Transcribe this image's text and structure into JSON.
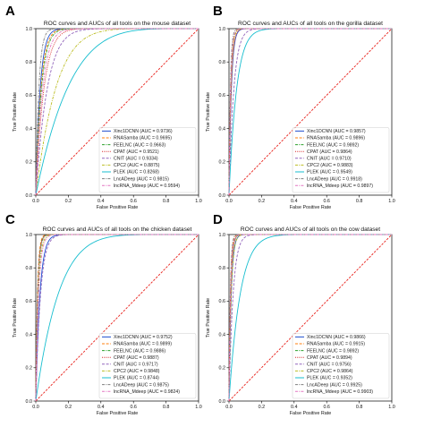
{
  "chart_data": [
    {
      "panel": "A",
      "type": "line",
      "title": "ROC curves and AUCs of all tools on the mouse dataset",
      "xlabel": "False Positive Rate",
      "ylabel": "True Positive Rate",
      "xlim": [
        0,
        1
      ],
      "ylim": [
        0,
        1
      ],
      "xticks": [
        "0.0",
        "0.2",
        "0.4",
        "0.6",
        "0.8",
        "1.0"
      ],
      "yticks": [
        "0.0",
        "0.2",
        "0.4",
        "0.6",
        "0.8",
        "1.0"
      ],
      "legend_position": "lower-right",
      "series": [
        {
          "name": "Xinc1DCNN (AUC = 0.9736)",
          "color": "#1f4fd0",
          "dash": "solid",
          "auc": 0.9736
        },
        {
          "name": "RNASamba (AUC = 0.9695)",
          "color": "#ff7f0e",
          "dash": "dashed",
          "auc": 0.9695
        },
        {
          "name": "FEELNC (AUC = 0.9663)",
          "color": "#2ca02c",
          "dash": "dashdot",
          "auc": 0.9663
        },
        {
          "name": "CPAT (AUC = 0.9521)",
          "color": "#d62728",
          "dash": "dotted",
          "auc": 0.9521
        },
        {
          "name": "CNIT (AUC = 0.9334)",
          "color": "#9467bd",
          "dash": "dashed",
          "auc": 0.9334
        },
        {
          "name": "CPC2 (AUC = 0.8875)",
          "color": "#bcbd22",
          "dash": "dashdot",
          "auc": 0.8875
        },
        {
          "name": "PLEK (AUC = 0.8268)",
          "color": "#17becf",
          "dash": "solid",
          "auc": 0.8268
        },
        {
          "name": "LncADeep (AUC = 0.9815)",
          "color": "#7f7f7f",
          "dash": "dashdot",
          "auc": 0.9815
        },
        {
          "name": "lncRNA_Mdeep (AUC = 0.9594)",
          "color": "#e377c2",
          "dash": "dashdot",
          "auc": 0.9594
        }
      ]
    },
    {
      "panel": "B",
      "type": "line",
      "title": "ROC curves and AUCs of all tools on the gorilla dataset",
      "xlabel": "False Positive Rate",
      "ylabel": "True Positive Rate",
      "xlim": [
        0,
        1
      ],
      "ylim": [
        0,
        1
      ],
      "xticks": [
        "0.0",
        "0.2",
        "0.4",
        "0.6",
        "0.8",
        "1.0"
      ],
      "yticks": [
        "0.0",
        "0.2",
        "0.4",
        "0.6",
        "0.8",
        "1.0"
      ],
      "legend_position": "lower-right",
      "series": [
        {
          "name": "Xinc1DCNN (AUC = 0.9857)",
          "color": "#1f4fd0",
          "dash": "solid",
          "auc": 0.9857
        },
        {
          "name": "RNASamba (AUC = 0.9896)",
          "color": "#ff7f0e",
          "dash": "dashed",
          "auc": 0.9896
        },
        {
          "name": "FEELNC (AUC = 0.9892)",
          "color": "#2ca02c",
          "dash": "dashdot",
          "auc": 0.9892
        },
        {
          "name": "CPAT (AUC = 0.9864)",
          "color": "#d62728",
          "dash": "dotted",
          "auc": 0.9864
        },
        {
          "name": "CNIT (AUC = 0.9710)",
          "color": "#9467bd",
          "dash": "dashed",
          "auc": 0.971
        },
        {
          "name": "CPC2 (AUC = 0.9883)",
          "color": "#bcbd22",
          "dash": "dashdot",
          "auc": 0.9883
        },
        {
          "name": "PLEK (AUC = 0.9549)",
          "color": "#17becf",
          "dash": "solid",
          "auc": 0.9549
        },
        {
          "name": "LncADeep (AUC = 0.9918)",
          "color": "#7f7f7f",
          "dash": "dashdot",
          "auc": 0.9918
        },
        {
          "name": "lncRNA_Mdeep (AUC = 0.9897)",
          "color": "#e377c2",
          "dash": "dashdot",
          "auc": 0.9897
        }
      ]
    },
    {
      "panel": "C",
      "type": "line",
      "title": "ROC curves and AUCs of all tools on the chicken dataset",
      "xlabel": "False Positive Rate",
      "ylabel": "True Positive Rate",
      "xlim": [
        0,
        1
      ],
      "ylim": [
        0,
        1
      ],
      "xticks": [
        "0.0",
        "0.2",
        "0.4",
        "0.6",
        "0.8",
        "1.0"
      ],
      "yticks": [
        "0.0",
        "0.2",
        "0.4",
        "0.6",
        "0.8",
        "1.0"
      ],
      "legend_position": "lower-right",
      "series": [
        {
          "name": "Xinc1DCNN (AUC = 0.9752)",
          "color": "#1f4fd0",
          "dash": "solid",
          "auc": 0.9752
        },
        {
          "name": "RNASamba (AUC = 0.9899)",
          "color": "#ff7f0e",
          "dash": "dashed",
          "auc": 0.9899
        },
        {
          "name": "FEELNC (AUC = 0.9886)",
          "color": "#2ca02c",
          "dash": "dashdot",
          "auc": 0.9886
        },
        {
          "name": "CPAT (AUC = 0.9887)",
          "color": "#d62728",
          "dash": "dotted",
          "auc": 0.9887
        },
        {
          "name": "CNIT (AUC = 0.9717)",
          "color": "#9467bd",
          "dash": "dashed",
          "auc": 0.9717
        },
        {
          "name": "CPC2 (AUC = 0.9848)",
          "color": "#bcbd22",
          "dash": "dashdot",
          "auc": 0.9848
        },
        {
          "name": "PLEK (AUC = 0.8744)",
          "color": "#17becf",
          "dash": "solid",
          "auc": 0.8744
        },
        {
          "name": "LncADeep (AUC = 0.9875)",
          "color": "#7f7f7f",
          "dash": "dashdot",
          "auc": 0.9875
        },
        {
          "name": "lncRNA_Mdeep (AUC = 0.9824)",
          "color": "#e377c2",
          "dash": "dashdot",
          "auc": 0.9824
        }
      ]
    },
    {
      "panel": "D",
      "type": "line",
      "title": "ROC curves and AUCs of all tools on the cow dataset",
      "xlabel": "False Positive Rate",
      "ylabel": "True Positive Rate",
      "xlim": [
        0,
        1
      ],
      "ylim": [
        0,
        1
      ],
      "xticks": [
        "0.0",
        "0.2",
        "0.4",
        "0.6",
        "0.8",
        "1.0"
      ],
      "yticks": [
        "0.0",
        "0.2",
        "0.4",
        "0.6",
        "0.8",
        "1.0"
      ],
      "legend_position": "lower-right",
      "series": [
        {
          "name": "Xinc1DCNN (AUC = 0.9866)",
          "color": "#1f4fd0",
          "dash": "solid",
          "auc": 0.9866
        },
        {
          "name": "RNASamba (AUC = 0.9915)",
          "color": "#ff7f0e",
          "dash": "dashed",
          "auc": 0.9915
        },
        {
          "name": "FEELNC (AUC = 0.9892)",
          "color": "#2ca02c",
          "dash": "dashdot",
          "auc": 0.9892
        },
        {
          "name": "CPAT (AUC = 0.9894)",
          "color": "#d62728",
          "dash": "dotted",
          "auc": 0.9894
        },
        {
          "name": "CNIT (AUC = 0.9756)",
          "color": "#9467bd",
          "dash": "dashed",
          "auc": 0.9756
        },
        {
          "name": "CPC2 (AUC = 0.9864)",
          "color": "#bcbd22",
          "dash": "dashdot",
          "auc": 0.9864
        },
        {
          "name": "PLEK (AUC = 0.9352)",
          "color": "#17becf",
          "dash": "solid",
          "auc": 0.9352
        },
        {
          "name": "LncADeep (AUC = 0.9925)",
          "color": "#7f7f7f",
          "dash": "dashdot",
          "auc": 0.9925
        },
        {
          "name": "lncRNA_Mdeep (AUC = 0.9903)",
          "color": "#e377c2",
          "dash": "dashdot",
          "auc": 0.9903
        }
      ]
    }
  ],
  "chance_line": {
    "color": "#e8201a",
    "dash": "dashed"
  }
}
